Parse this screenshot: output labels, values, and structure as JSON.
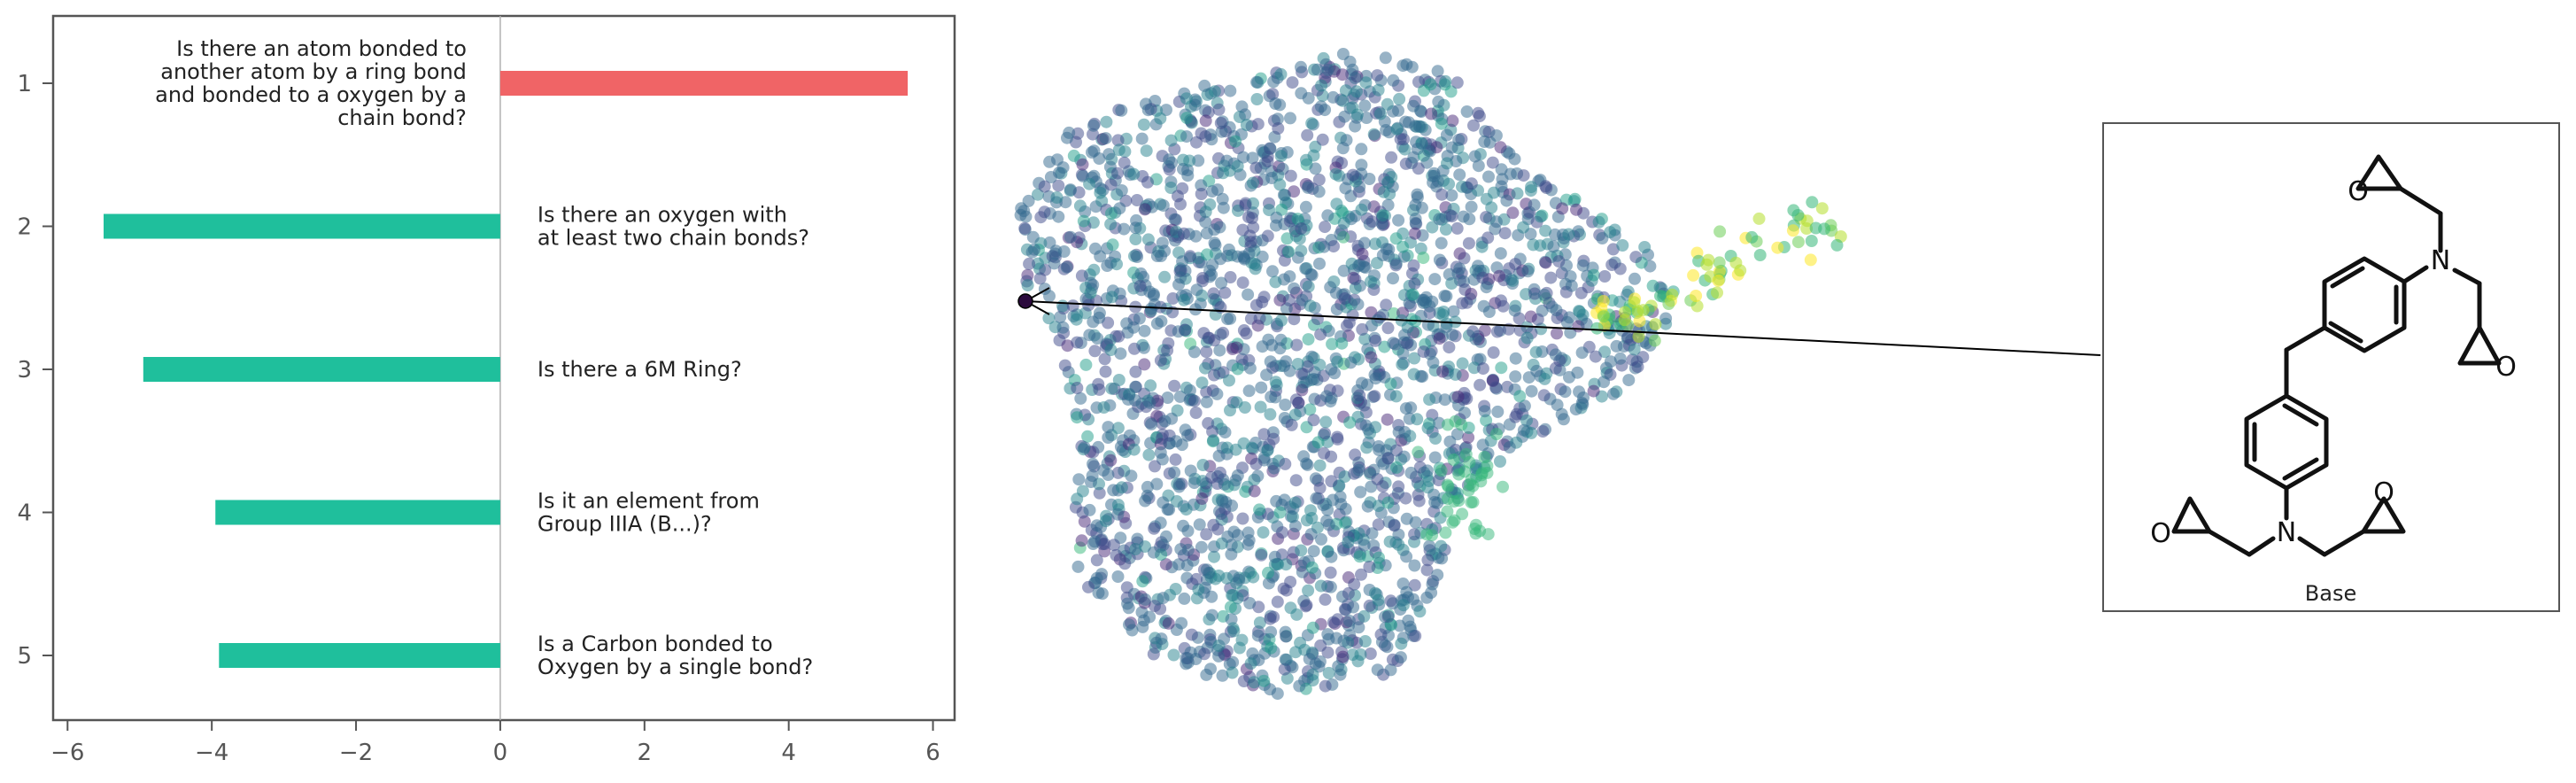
{
  "chart_data": [
    {
      "type": "bar",
      "orientation": "horizontal",
      "categories": [
        "1",
        "2",
        "3",
        "4",
        "5"
      ],
      "values": [
        5.65,
        -5.5,
        -4.95,
        -3.95,
        -3.9
      ],
      "colors": [
        "#f06466",
        "#1fbf9c",
        "#1fbf9c",
        "#1fbf9c",
        "#1fbf9c"
      ],
      "bar_labels": [
        "Is there an atom bonded to\nanother atom by a ring bond\nand bonded to a oxygen by a\nchain bond?",
        "Is there an oxygen with\nat least two chain bonds?",
        "Is there a 6M Ring?",
        "Is it an element from\nGroup IIIA (B...)?",
        "Is a Carbon bonded to\nOxygen by a single bond?"
      ],
      "xlim": [
        -6.2,
        6.3
      ],
      "xticks": [
        "−6",
        "−4",
        "−2",
        "0",
        "2",
        "4",
        "6"
      ],
      "xtick_values": [
        -6,
        -4,
        -2,
        0,
        2,
        4,
        6
      ],
      "yticks": [
        "1",
        "2",
        "3",
        "4",
        "5"
      ],
      "grid": false
    },
    {
      "type": "scatter",
      "colormap": "viridis",
      "axes_visible": false,
      "highlighted_point": {
        "color": "#2b0a3d"
      },
      "annotation": "arrow from highlighted point to molecule panel"
    }
  ],
  "molecule_panel": {
    "caption": "Base",
    "atoms": {
      "oxygen": "O",
      "nitrogen": "N"
    }
  },
  "colors": {
    "positive_bar": "#f06466",
    "negative_bar": "#1fbf9c",
    "axis": "#555555"
  }
}
